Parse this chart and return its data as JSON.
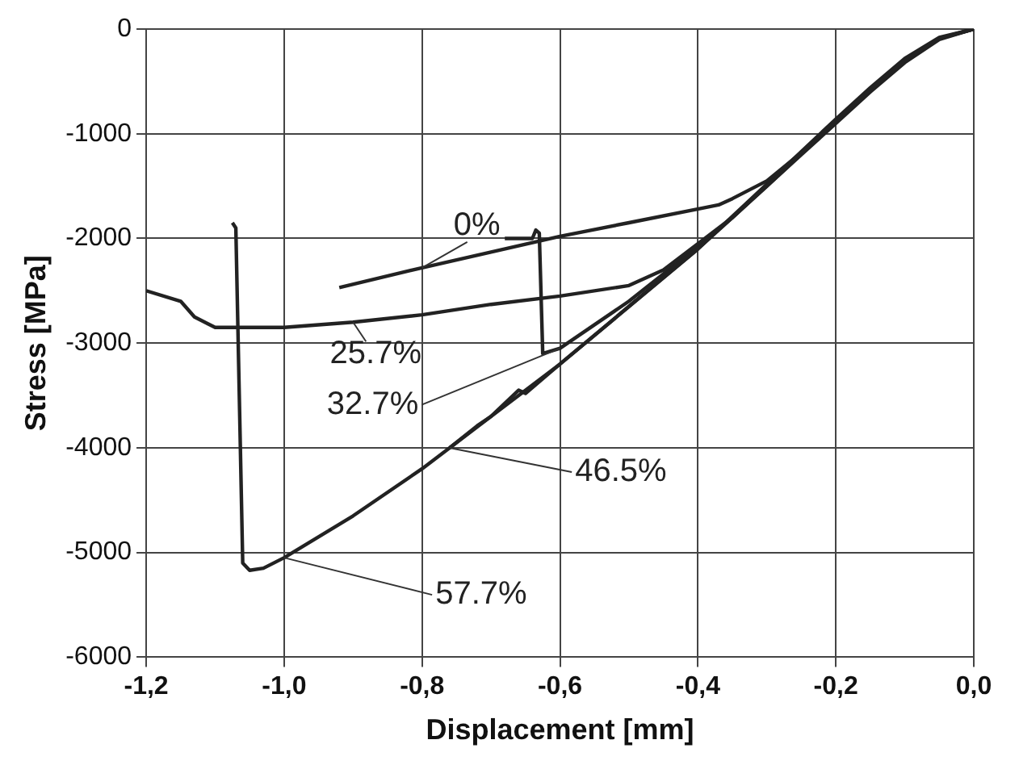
{
  "chart_data": {
    "type": "line",
    "xlabel": "Displacement [mm]",
    "ylabel": "Stress [MPa]",
    "xlim": [
      -1.2,
      0
    ],
    "ylim": [
      -6000,
      0
    ],
    "xticks": [
      {
        "value": -1.2,
        "label": "-1,2"
      },
      {
        "value": -1.0,
        "label": "-1,0"
      },
      {
        "value": -0.8,
        "label": "-0,8"
      },
      {
        "value": -0.6,
        "label": "-0,6"
      },
      {
        "value": -0.4,
        "label": "-0,4"
      },
      {
        "value": -0.2,
        "label": "-0,2"
      },
      {
        "value": 0,
        "label": "0,0"
      }
    ],
    "yticks": [
      -6000,
      -5000,
      -4000,
      -3000,
      -2000,
      -1000,
      0
    ],
    "grid": true,
    "legend": false,
    "marker": "none",
    "line_style": "solid",
    "series": [
      {
        "name": "0%",
        "color": "#222222",
        "x": [
          0,
          -0.05,
          -0.1,
          -0.15,
          -0.2,
          -0.25,
          -0.3,
          -0.35,
          -0.37,
          -0.5,
          -0.6,
          -0.7,
          -0.8,
          -0.92
        ],
        "values": [
          0,
          -90,
          -300,
          -580,
          -880,
          -1180,
          -1450,
          -1620,
          -1680,
          -1850,
          -1980,
          -2130,
          -2280,
          -2470
        ]
      },
      {
        "name": "25.7%",
        "color": "#222222",
        "x": [
          0,
          -0.05,
          -0.1,
          -0.15,
          -0.2,
          -0.25,
          -0.3,
          -0.35,
          -0.4,
          -0.45,
          -0.5,
          -0.6,
          -0.7,
          -0.8,
          -0.9,
          -1.0,
          -1.1,
          -1.13,
          -1.15,
          -1.2
        ],
        "values": [
          0,
          -90,
          -310,
          -590,
          -890,
          -1190,
          -1500,
          -1800,
          -2050,
          -2300,
          -2450,
          -2550,
          -2630,
          -2730,
          -2800,
          -2850,
          -2850,
          -2750,
          -2600,
          -2500
        ]
      },
      {
        "name": "32.7%",
        "color": "#222222",
        "x": [
          0,
          -0.05,
          -0.1,
          -0.15,
          -0.2,
          -0.25,
          -0.3,
          -0.35,
          -0.4,
          -0.5,
          -0.6,
          -0.625,
          -0.63,
          -0.635,
          -0.64,
          -0.68
        ],
        "values": [
          0,
          -90,
          -300,
          -580,
          -880,
          -1180,
          -1490,
          -1800,
          -2080,
          -2600,
          -3050,
          -3100,
          -1950,
          -1920,
          -2000,
          -2000
        ]
      },
      {
        "name": "46.5%",
        "color": "#222222",
        "x": [
          0,
          -0.05,
          -0.1,
          -0.15,
          -0.2,
          -0.25,
          -0.3,
          -0.35,
          -0.4,
          -0.5,
          -0.6,
          -0.65,
          -0.66,
          -0.7,
          -0.72,
          -0.76
        ],
        "values": [
          0,
          -80,
          -280,
          -560,
          -860,
          -1170,
          -1480,
          -1790,
          -2100,
          -2650,
          -3200,
          -3480,
          -3450,
          -3700,
          -3790,
          -4000
        ]
      },
      {
        "name": "57.7%",
        "color": "#222222",
        "x": [
          0,
          -0.05,
          -0.1,
          -0.15,
          -0.2,
          -0.25,
          -0.3,
          -0.35,
          -0.4,
          -0.5,
          -0.6,
          -0.7,
          -0.8,
          -0.9,
          -1.0,
          -1.03,
          -1.05,
          -1.06,
          -1.065,
          -1.07,
          -1.075
        ],
        "values": [
          0,
          -100,
          -320,
          -600,
          -900,
          -1200,
          -1500,
          -1800,
          -2100,
          -2650,
          -3200,
          -3700,
          -4200,
          -4650,
          -5050,
          -5150,
          -5170,
          -5100,
          -3500,
          -1900,
          -1850
        ]
      }
    ]
  }
}
